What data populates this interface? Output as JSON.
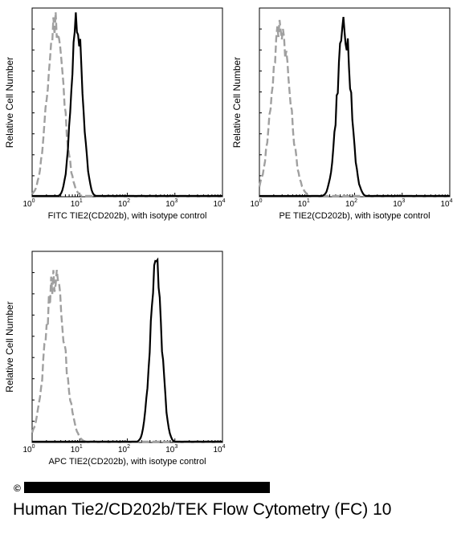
{
  "chart_data": [
    {
      "type": "line",
      "xlabel": "FITC TIE2(CD202b),  with isotype control",
      "ylabel": "Relative Cell Number",
      "x_scale": "log",
      "xlim": [
        1,
        10000
      ],
      "x_tick_labels": [
        {
          "base": "10",
          "exp": "0"
        },
        {
          "base": "10",
          "exp": "1"
        },
        {
          "base": "10",
          "exp": "2"
        },
        {
          "base": "10",
          "exp": "3"
        },
        {
          "base": "10",
          "exp": "4"
        }
      ],
      "ylim": [
        0,
        1
      ],
      "series": [
        {
          "style": "dashed",
          "color": "#a0a0a0",
          "mean": 3.1,
          "sd_decades": 0.17,
          "peak": 0.94
        },
        {
          "style": "solid",
          "color": "#000000",
          "mean": 8.8,
          "sd_decades": 0.12,
          "peak": 0.93
        }
      ]
    },
    {
      "type": "line",
      "xlabel": "PE TIE2(CD202b),  with isotype control",
      "ylabel": "Relative Cell Number",
      "x_scale": "log",
      "xlim": [
        1,
        10000
      ],
      "x_tick_labels": [
        {
          "base": "10",
          "exp": "0"
        },
        {
          "base": "10",
          "exp": "1"
        },
        {
          "base": "10",
          "exp": "2"
        },
        {
          "base": "10",
          "exp": "3"
        },
        {
          "base": "10",
          "exp": "4"
        }
      ],
      "ylim": [
        0,
        1
      ],
      "series": [
        {
          "style": "dashed",
          "color": "#a0a0a0",
          "mean": 2.8,
          "sd_decades": 0.19,
          "peak": 0.92
        },
        {
          "style": "solid",
          "color": "#000000",
          "mean": 60,
          "sd_decades": 0.14,
          "peak": 0.92
        }
      ]
    },
    {
      "type": "line",
      "xlabel": "APC TIE2(CD202b), with isotype control",
      "ylabel": "Relative Cell Number",
      "x_scale": "log",
      "xlim": [
        1,
        10000
      ],
      "x_tick_labels": [
        {
          "base": "10",
          "exp": "0"
        },
        {
          "base": "10",
          "exp": "1"
        },
        {
          "base": "10",
          "exp": "2"
        },
        {
          "base": "10",
          "exp": "3"
        },
        {
          "base": "10",
          "exp": "4"
        }
      ],
      "ylim": [
        0,
        1
      ],
      "series": [
        {
          "style": "dashed",
          "color": "#a0a0a0",
          "mean": 3.0,
          "sd_decades": 0.2,
          "peak": 0.87
        },
        {
          "style": "solid",
          "color": "#000000",
          "mean": 400,
          "sd_decades": 0.12,
          "peak": 0.92
        }
      ]
    }
  ],
  "caption": "Human Tie2/CD202b/TEK Flow Cytometry (FC) 10",
  "copyright_symbol": "©"
}
